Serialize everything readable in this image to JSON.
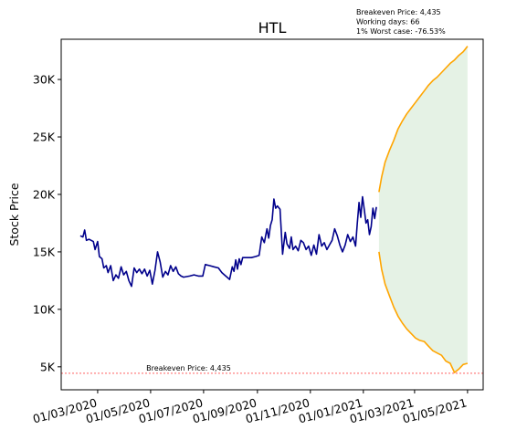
{
  "chart_data": {
    "type": "line",
    "title": "HTL",
    "xlabel": "",
    "ylabel": "Stock Price",
    "x_ticks": [
      "01/03/2020",
      "01/05/2020",
      "01/07/2020",
      "01/09/2020",
      "01/11/2020",
      "01/01/2021",
      "01/03/2021",
      "01/05/2021"
    ],
    "y_ticks": [
      "5K",
      "10K",
      "15K",
      "20K",
      "25K",
      "30K"
    ],
    "ylim": [
      3000,
      33500
    ],
    "xlim": [
      "2020-01-19",
      "2021-05-19"
    ],
    "grid": false,
    "info_lines": [
      "Breakeven Price: 4,435",
      "Working days: 66",
      "1% Worst case: -76.53%"
    ],
    "breakeven": {
      "label": "Breakeven Price: 4,435",
      "value": 4435,
      "color": "#ff0000"
    },
    "series": [
      {
        "color": "#00008b",
        "points": [
          [
            "2020-02-10",
            16400
          ],
          [
            "2020-02-13",
            16300
          ],
          [
            "2020-02-15",
            16900
          ],
          [
            "2020-02-17",
            16000
          ],
          [
            "2020-02-20",
            16100
          ],
          [
            "2020-02-25",
            15900
          ],
          [
            "2020-02-27",
            15200
          ],
          [
            "2020-03-01",
            15900
          ],
          [
            "2020-03-03",
            14600
          ],
          [
            "2020-03-06",
            14400
          ],
          [
            "2020-03-08",
            13600
          ],
          [
            "2020-03-11",
            13800
          ],
          [
            "2020-03-13",
            13200
          ],
          [
            "2020-03-16",
            13800
          ],
          [
            "2020-03-19",
            12500
          ],
          [
            "2020-03-22",
            13000
          ],
          [
            "2020-03-25",
            12700
          ],
          [
            "2020-03-28",
            13700
          ],
          [
            "2020-03-31",
            13000
          ],
          [
            "2020-04-03",
            13300
          ],
          [
            "2020-04-06",
            12500
          ],
          [
            "2020-04-09",
            12000
          ],
          [
            "2020-04-12",
            13600
          ],
          [
            "2020-04-15",
            13200
          ],
          [
            "2020-04-18",
            13500
          ],
          [
            "2020-04-21",
            13100
          ],
          [
            "2020-04-24",
            13500
          ],
          [
            "2020-04-27",
            12900
          ],
          [
            "2020-04-30",
            13400
          ],
          [
            "2020-05-03",
            12200
          ],
          [
            "2020-05-06",
            13400
          ],
          [
            "2020-05-09",
            15000
          ],
          [
            "2020-05-12",
            14100
          ],
          [
            "2020-05-15",
            12800
          ],
          [
            "2020-05-18",
            13300
          ],
          [
            "2020-05-21",
            13000
          ],
          [
            "2020-05-24",
            13800
          ],
          [
            "2020-05-27",
            13300
          ],
          [
            "2020-05-30",
            13700
          ],
          [
            "2020-06-02",
            13100
          ],
          [
            "2020-06-05",
            12900
          ],
          [
            "2020-06-08",
            12800
          ],
          [
            "2020-06-15",
            12900
          ],
          [
            "2020-06-20",
            13000
          ],
          [
            "2020-06-25",
            12900
          ],
          [
            "2020-06-30",
            12900
          ],
          [
            "2020-07-03",
            13900
          ],
          [
            "2020-07-08",
            13800
          ],
          [
            "2020-07-13",
            13700
          ],
          [
            "2020-07-18",
            13600
          ],
          [
            "2020-07-22",
            13200
          ],
          [
            "2020-07-25",
            13000
          ],
          [
            "2020-07-28",
            12800
          ],
          [
            "2020-07-31",
            12600
          ],
          [
            "2020-08-03",
            13700
          ],
          [
            "2020-08-05",
            13300
          ],
          [
            "2020-08-07",
            14300
          ],
          [
            "2020-08-09",
            13500
          ],
          [
            "2020-08-11",
            14400
          ],
          [
            "2020-08-13",
            13900
          ],
          [
            "2020-08-15",
            14500
          ],
          [
            "2020-08-20",
            14500
          ],
          [
            "2020-08-25",
            14500
          ],
          [
            "2020-08-30",
            14600
          ],
          [
            "2020-09-03",
            14700
          ],
          [
            "2020-09-06",
            16300
          ],
          [
            "2020-09-09",
            15800
          ],
          [
            "2020-09-12",
            17000
          ],
          [
            "2020-09-14",
            16200
          ],
          [
            "2020-09-16",
            17300
          ],
          [
            "2020-09-18",
            17800
          ],
          [
            "2020-09-20",
            19600
          ],
          [
            "2020-09-22",
            18800
          ],
          [
            "2020-09-24",
            19000
          ],
          [
            "2020-09-27",
            18700
          ],
          [
            "2020-09-30",
            14800
          ],
          [
            "2020-10-03",
            16700
          ],
          [
            "2020-10-05",
            15700
          ],
          [
            "2020-10-08",
            15300
          ],
          [
            "2020-10-10",
            16300
          ],
          [
            "2020-10-12",
            15200
          ],
          [
            "2020-10-15",
            15500
          ],
          [
            "2020-10-18",
            15100
          ],
          [
            "2020-10-21",
            16000
          ],
          [
            "2020-10-24",
            15800
          ],
          [
            "2020-10-27",
            15200
          ],
          [
            "2020-10-30",
            15500
          ],
          [
            "2020-11-02",
            14700
          ],
          [
            "2020-11-05",
            15600
          ],
          [
            "2020-11-08",
            14800
          ],
          [
            "2020-11-11",
            16500
          ],
          [
            "2020-11-14",
            15500
          ],
          [
            "2020-11-17",
            15800
          ],
          [
            "2020-11-20",
            15200
          ],
          [
            "2020-11-23",
            15600
          ],
          [
            "2020-11-26",
            16000
          ],
          [
            "2020-11-29",
            17000
          ],
          [
            "2020-12-02",
            16400
          ],
          [
            "2020-12-05",
            15600
          ],
          [
            "2020-12-08",
            15000
          ],
          [
            "2020-12-11",
            15600
          ],
          [
            "2020-12-14",
            16500
          ],
          [
            "2020-12-17",
            15900
          ],
          [
            "2020-12-20",
            16300
          ],
          [
            "2020-12-23",
            15500
          ],
          [
            "2020-12-25",
            17500
          ],
          [
            "2020-12-27",
            19300
          ],
          [
            "2020-12-29",
            18000
          ],
          [
            "2020-12-31",
            19800
          ],
          [
            "2021-01-02",
            18700
          ],
          [
            "2021-01-04",
            17500
          ],
          [
            "2021-01-06",
            17800
          ],
          [
            "2021-01-08",
            16500
          ],
          [
            "2021-01-10",
            17200
          ],
          [
            "2021-01-12",
            18800
          ],
          [
            "2021-01-14",
            17900
          ],
          [
            "2021-01-16",
            18900
          ]
        ]
      },
      {
        "color": "#ffa500",
        "points": [
          [
            "2021-01-19",
            20200
          ],
          [
            "2021-01-22",
            21500
          ],
          [
            "2021-01-26",
            22800
          ],
          [
            "2021-01-31",
            23800
          ],
          [
            "2021-02-05",
            24700
          ],
          [
            "2021-02-10",
            25700
          ],
          [
            "2021-02-15",
            26400
          ],
          [
            "2021-02-20",
            27000
          ],
          [
            "2021-02-25",
            27500
          ],
          [
            "2021-03-02",
            28000
          ],
          [
            "2021-03-07",
            28500
          ],
          [
            "2021-03-12",
            29000
          ],
          [
            "2021-03-17",
            29500
          ],
          [
            "2021-03-22",
            29900
          ],
          [
            "2021-03-27",
            30200
          ],
          [
            "2021-04-01",
            30600
          ],
          [
            "2021-04-06",
            31000
          ],
          [
            "2021-04-11",
            31400
          ],
          [
            "2021-04-16",
            31700
          ],
          [
            "2021-04-21",
            32100
          ],
          [
            "2021-04-26",
            32400
          ],
          [
            "2021-05-01",
            32900
          ]
        ]
      },
      {
        "color": "#ffa500",
        "points": [
          [
            "2021-01-19",
            15000
          ],
          [
            "2021-01-22",
            13500
          ],
          [
            "2021-01-26",
            12200
          ],
          [
            "2021-01-31",
            11200
          ],
          [
            "2021-02-05",
            10200
          ],
          [
            "2021-02-10",
            9400
          ],
          [
            "2021-02-15",
            8800
          ],
          [
            "2021-02-20",
            8300
          ],
          [
            "2021-02-25",
            7900
          ],
          [
            "2021-03-02",
            7500
          ],
          [
            "2021-03-07",
            7300
          ],
          [
            "2021-03-12",
            7200
          ],
          [
            "2021-03-17",
            6800
          ],
          [
            "2021-03-22",
            6400
          ],
          [
            "2021-03-27",
            6200
          ],
          [
            "2021-04-01",
            6000
          ],
          [
            "2021-04-06",
            5500
          ],
          [
            "2021-04-11",
            5300
          ],
          [
            "2021-04-16",
            4500
          ],
          [
            "2021-04-21",
            4800
          ],
          [
            "2021-04-26",
            5200
          ],
          [
            "2021-05-01",
            5300
          ]
        ]
      }
    ],
    "band": {
      "color": "#e5f2e5",
      "x_start": "2021-01-19",
      "x_end": "2021-05-01"
    }
  }
}
